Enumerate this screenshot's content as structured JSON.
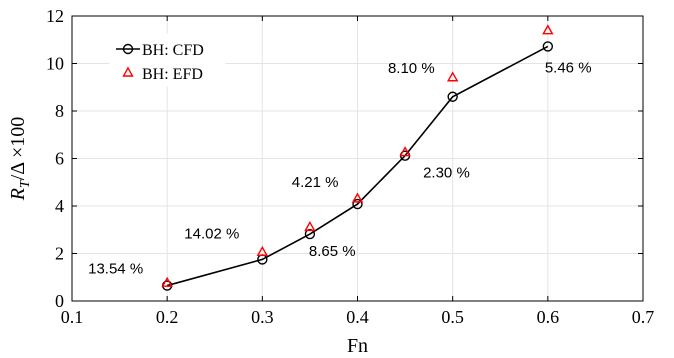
{
  "chart_data": {
    "type": "line",
    "x": [
      0.2,
      0.3,
      0.35,
      0.4,
      0.45,
      0.5,
      0.6
    ],
    "series": [
      {
        "name": "BH: CFD",
        "values": [
          0.65,
          1.75,
          2.82,
          4.08,
          6.12,
          8.6,
          10.72
        ],
        "color": "#000000",
        "marker": "circle",
        "line": true
      },
      {
        "name": "BH: EFD",
        "values": [
          0.75,
          2.05,
          3.1,
          4.3,
          6.25,
          9.4,
          11.38
        ],
        "color": "#ff0000",
        "marker": "triangle",
        "line": false
      }
    ],
    "xlabel": "Fn",
    "ylabel_parts": {
      "main": "R",
      "sub": "T",
      "rest": "/Δ ×100"
    },
    "xlim": [
      0.1,
      0.7
    ],
    "ylim": [
      0,
      12
    ],
    "xticks": [
      "0.1",
      "0.2",
      "0.3",
      "0.4",
      "0.5",
      "0.6",
      "0.7"
    ],
    "yticks": [
      "0",
      "2",
      "4",
      "6",
      "8",
      "10",
      "12"
    ],
    "grid": true,
    "legend_position": "top-left",
    "annotations": [
      {
        "text": "13.54 %",
        "x": 0.2,
        "y": 0.65
      },
      {
        "text": "14.02 %",
        "x": 0.3,
        "y": 1.75
      },
      {
        "text": "8.65 %",
        "x": 0.35,
        "y": 2.82
      },
      {
        "text": "4.21 %",
        "x": 0.4,
        "y": 4.08
      },
      {
        "text": "2.30 %",
        "x": 0.45,
        "y": 6.12
      },
      {
        "text": "8.10 %",
        "x": 0.5,
        "y": 8.6
      },
      {
        "text": "5.46 %",
        "x": 0.6,
        "y": 10.72
      }
    ]
  }
}
